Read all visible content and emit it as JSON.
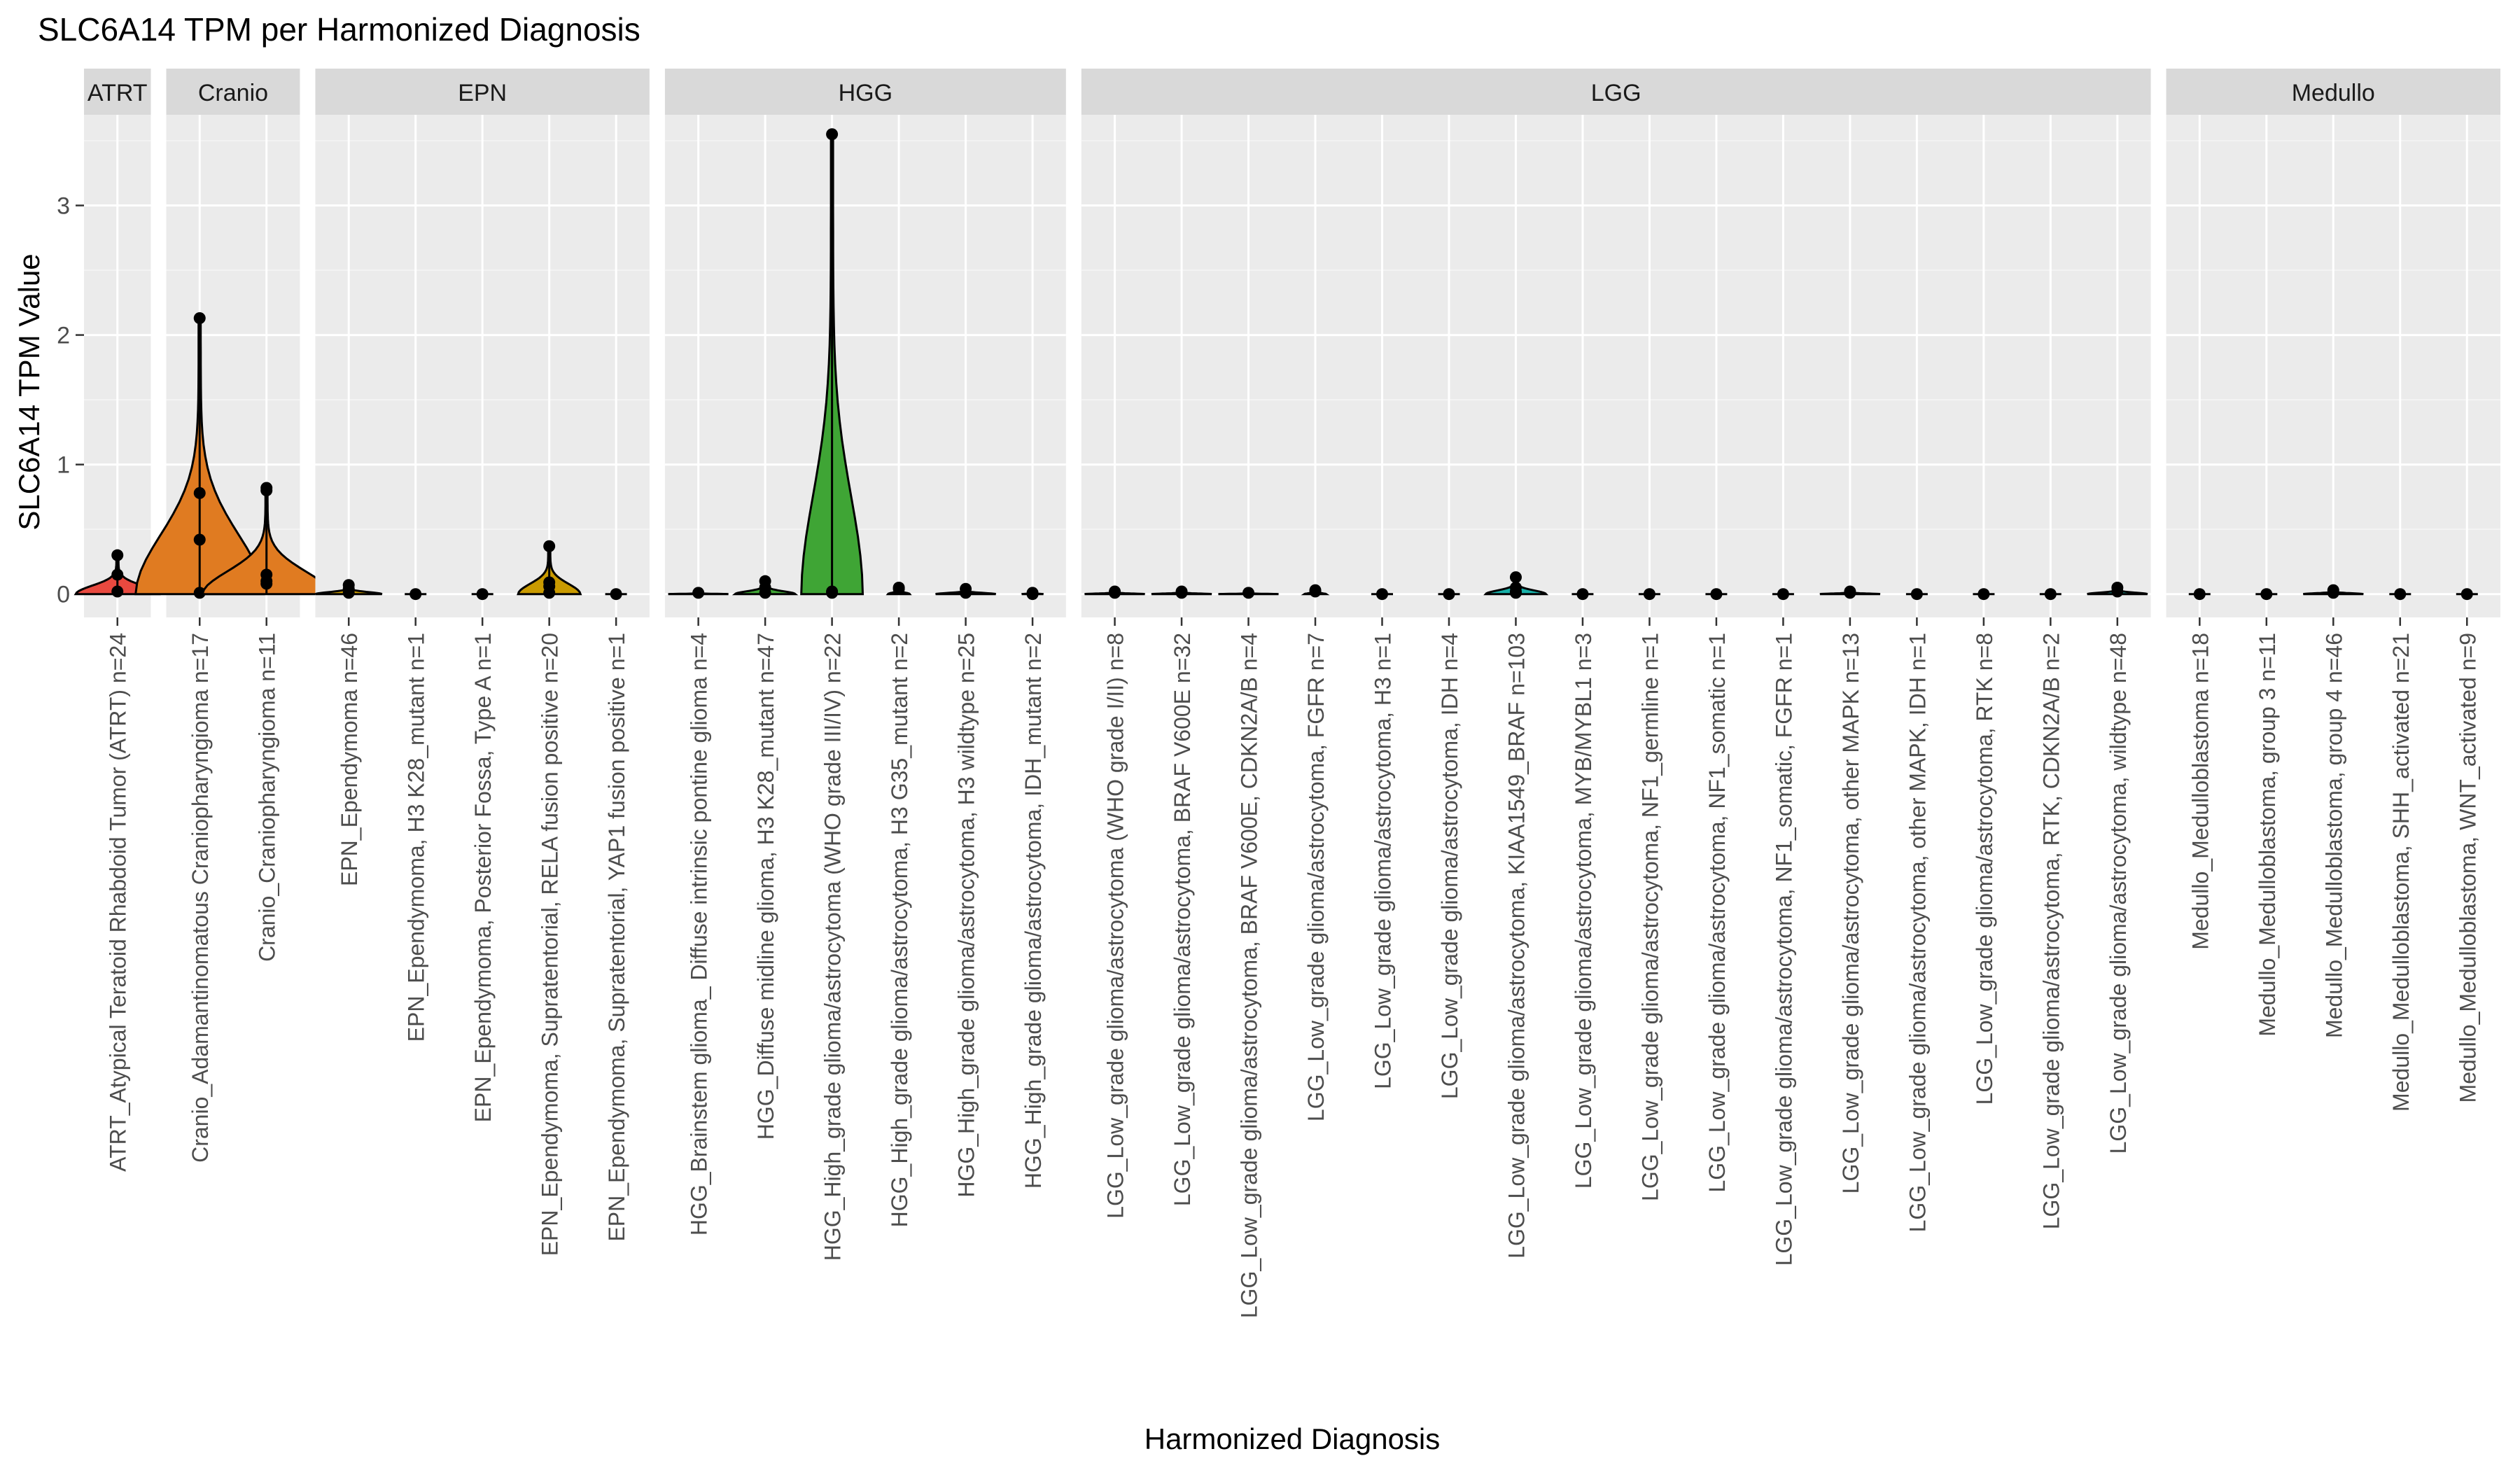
{
  "chart_data": {
    "type": "violin",
    "title": "SLC6A14 TPM per Harmonized Diagnosis",
    "xlabel": "Harmonized Diagnosis",
    "ylabel": "SLC6A14 TPM Value",
    "ylim": [
      -0.18,
      3.7
    ],
    "yticks": [
      0,
      1,
      2,
      3
    ],
    "grid": true,
    "legend": "none",
    "panels": [
      {
        "name": "ATRT",
        "color": "#e8493f",
        "categories": [
          {
            "label": "ATRT_Atypical Teratoid Rhabdoid Tumor (ATRT) n=24",
            "violin_max": 0.06,
            "violin_top": 0.3,
            "points": [
              0.3,
              0.15,
              0.02
            ]
          }
        ]
      },
      {
        "name": "Cranio",
        "color": "#e07b21",
        "categories": [
          {
            "label": "Cranio_Adamantinomatous Craniopharyngioma n=17",
            "violin_max": 0.5,
            "violin_top": 2.13,
            "points": [
              2.13,
              0.78,
              0.42,
              0.01
            ]
          },
          {
            "label": "Cranio_Craniopharyngioma n=11",
            "violin_max": 0.28,
            "violin_top": 0.82,
            "points": [
              0.82,
              0.8,
              0.15,
              0.1,
              0.08
            ]
          }
        ]
      },
      {
        "name": "EPN",
        "color": "#c99a00",
        "categories": [
          {
            "label": "EPN_Ependymoma n=46",
            "violin_max": 0.02,
            "violin_top": 0.07,
            "points": [
              0.07,
              0.04,
              0.01
            ]
          },
          {
            "label": "EPN_Ependymoma, H3 K28_mutant n=1",
            "violin_max": 0,
            "violin_top": 0,
            "points": [
              0.0
            ]
          },
          {
            "label": "EPN_Ependymoma, Posterior Fossa, Type A n=1",
            "violin_max": 0,
            "violin_top": 0,
            "points": [
              0.0
            ]
          },
          {
            "label": "EPN_Ependymoma, Supratentorial, RELA fusion positive n=20",
            "violin_max": 0.01,
            "violin_top": 0.37,
            "points": [
              0.37,
              0.09,
              0.06,
              0.01
            ]
          },
          {
            "label": "EPN_Ependymoma, Supratentorial, YAP1 fusion positive n=1",
            "violin_max": 0,
            "violin_top": 0,
            "points": [
              0.0
            ]
          }
        ]
      },
      {
        "name": "HGG",
        "color": "#3fa535",
        "categories": [
          {
            "label": "HGG_Brainstem glioma_ Diffuse intrinsic pontine glioma n=4",
            "violin_max": 0.005,
            "violin_top": 0.01,
            "points": [
              0.01
            ]
          },
          {
            "label": "HGG_Diffuse midline glioma, H3 K28_mutant n=47",
            "violin_max": 0.005,
            "violin_top": 0.1,
            "points": [
              0.1,
              0.05,
              0.01
            ]
          },
          {
            "label": "HGG_High_grade glioma/astrocytoma (WHO grade III/IV) n=22",
            "violin_max": 0.008,
            "violin_top": 3.55,
            "points": [
              3.55,
              0.02,
              0.01
            ]
          },
          {
            "label": "HGG_High_grade glioma/astrocytoma, H3 G35_mutant n=2",
            "violin_max": 0,
            "violin_top": 0.05,
            "points": [
              0.05,
              0.04
            ]
          },
          {
            "label": "HGG_High_grade glioma/astrocytoma, H3 wildtype n=25",
            "violin_max": 0.005,
            "violin_top": 0.04,
            "points": [
              0.04,
              0.01
            ]
          },
          {
            "label": "HGG_High_grade glioma/astrocytoma, IDH_mutant n=2",
            "violin_max": 0,
            "violin_top": 0.01,
            "points": [
              0.01,
              0.0
            ]
          }
        ]
      },
      {
        "name": "LGG",
        "color": "#18b0a8",
        "categories": [
          {
            "label": "LGG_Low_grade glioma/astrocytoma (WHO grade I/II) n=8",
            "violin_max": 0.005,
            "violin_top": 0.02,
            "points": [
              0.02,
              0.01
            ]
          },
          {
            "label": "LGG_Low_grade glioma/astrocytoma, BRAF V600E n=32",
            "violin_max": 0.005,
            "violin_top": 0.02,
            "points": [
              0.02,
              0.01
            ]
          },
          {
            "label": "LGG_Low_grade glioma/astrocytoma, BRAF V600E, CDKN2A/B n=4",
            "violin_max": 0.005,
            "violin_top": 0.01,
            "points": [
              0.01
            ]
          },
          {
            "label": "LGG_Low_grade glioma/astrocytoma, FGFR n=7",
            "violin_max": 0,
            "violin_top": 0.03,
            "points": [
              0.03,
              0.02
            ]
          },
          {
            "label": "LGG_Low_grade glioma/astrocytoma, H3 n=1",
            "violin_max": 0,
            "violin_top": 0,
            "points": [
              0.0
            ]
          },
          {
            "label": "LGG_Low_grade glioma/astrocytoma, IDH n=4",
            "violin_max": 0,
            "violin_top": 0,
            "points": [
              0.0
            ]
          },
          {
            "label": "LGG_Low_grade glioma/astrocytoma, KIAA1549_BRAF n=103",
            "violin_max": 0.005,
            "violin_top": 0.13,
            "points": [
              0.13,
              0.05,
              0.02,
              0.01
            ]
          },
          {
            "label": "LGG_Low_grade glioma/astrocytoma, MYB/MYBL1 n=3",
            "violin_max": 0,
            "violin_top": 0,
            "points": [
              0.0
            ]
          },
          {
            "label": "LGG_Low_grade glioma/astrocytoma, NF1_germline n=1",
            "violin_max": 0,
            "violin_top": 0,
            "points": [
              0.0
            ]
          },
          {
            "label": "LGG_Low_grade glioma/astrocytoma, NF1_somatic n=1",
            "violin_max": 0,
            "violin_top": 0,
            "points": [
              0.0
            ]
          },
          {
            "label": "LGG_Low_grade glioma/astrocytoma, NF1_somatic, FGFR n=1",
            "violin_max": 0,
            "violin_top": 0,
            "points": [
              0.0
            ]
          },
          {
            "label": "LGG_Low_grade glioma/astrocytoma, other MAPK n=13",
            "violin_max": 0.005,
            "violin_top": 0.02,
            "points": [
              0.02,
              0.01
            ]
          },
          {
            "label": "LGG_Low_grade glioma/astrocytoma, other MAPK, IDH n=1",
            "violin_max": 0,
            "violin_top": 0,
            "points": [
              0.0
            ]
          },
          {
            "label": "LGG_Low_grade glioma/astrocytoma, RTK n=8",
            "violin_max": 0,
            "violin_top": 0,
            "points": [
              0.0
            ]
          },
          {
            "label": "LGG_Low_grade glioma/astrocytoma, RTK, CDKN2A/B n=2",
            "violin_max": 0,
            "violin_top": 0,
            "points": [
              0.0
            ]
          },
          {
            "label": "LGG_Low_grade glioma/astrocytoma, wildtype n=48",
            "violin_max": 0.005,
            "violin_top": 0.05,
            "points": [
              0.05,
              0.02
            ]
          }
        ]
      },
      {
        "name": "Medullo",
        "color": "#2fa6df",
        "categories": [
          {
            "label": "Medullo_Medulloblastoma n=18",
            "violin_max": 0,
            "violin_top": 0,
            "points": [
              0.0
            ]
          },
          {
            "label": "Medullo_Medulloblastoma, group 3 n=11",
            "violin_max": 0,
            "violin_top": 0,
            "points": [
              0.0
            ]
          },
          {
            "label": "Medullo_Medulloblastoma, group 4 n=46",
            "violin_max": 0.005,
            "violin_top": 0.03,
            "points": [
              0.03,
              0.01
            ]
          },
          {
            "label": "Medullo_Medulloblastoma, SHH_activated n=21",
            "violin_max": 0,
            "violin_top": 0,
            "points": [
              0.0
            ]
          },
          {
            "label": "Medullo_Medulloblastoma, WNT_activated n=9",
            "violin_max": 0,
            "violin_top": 0,
            "points": [
              0.0
            ]
          }
        ]
      }
    ]
  }
}
